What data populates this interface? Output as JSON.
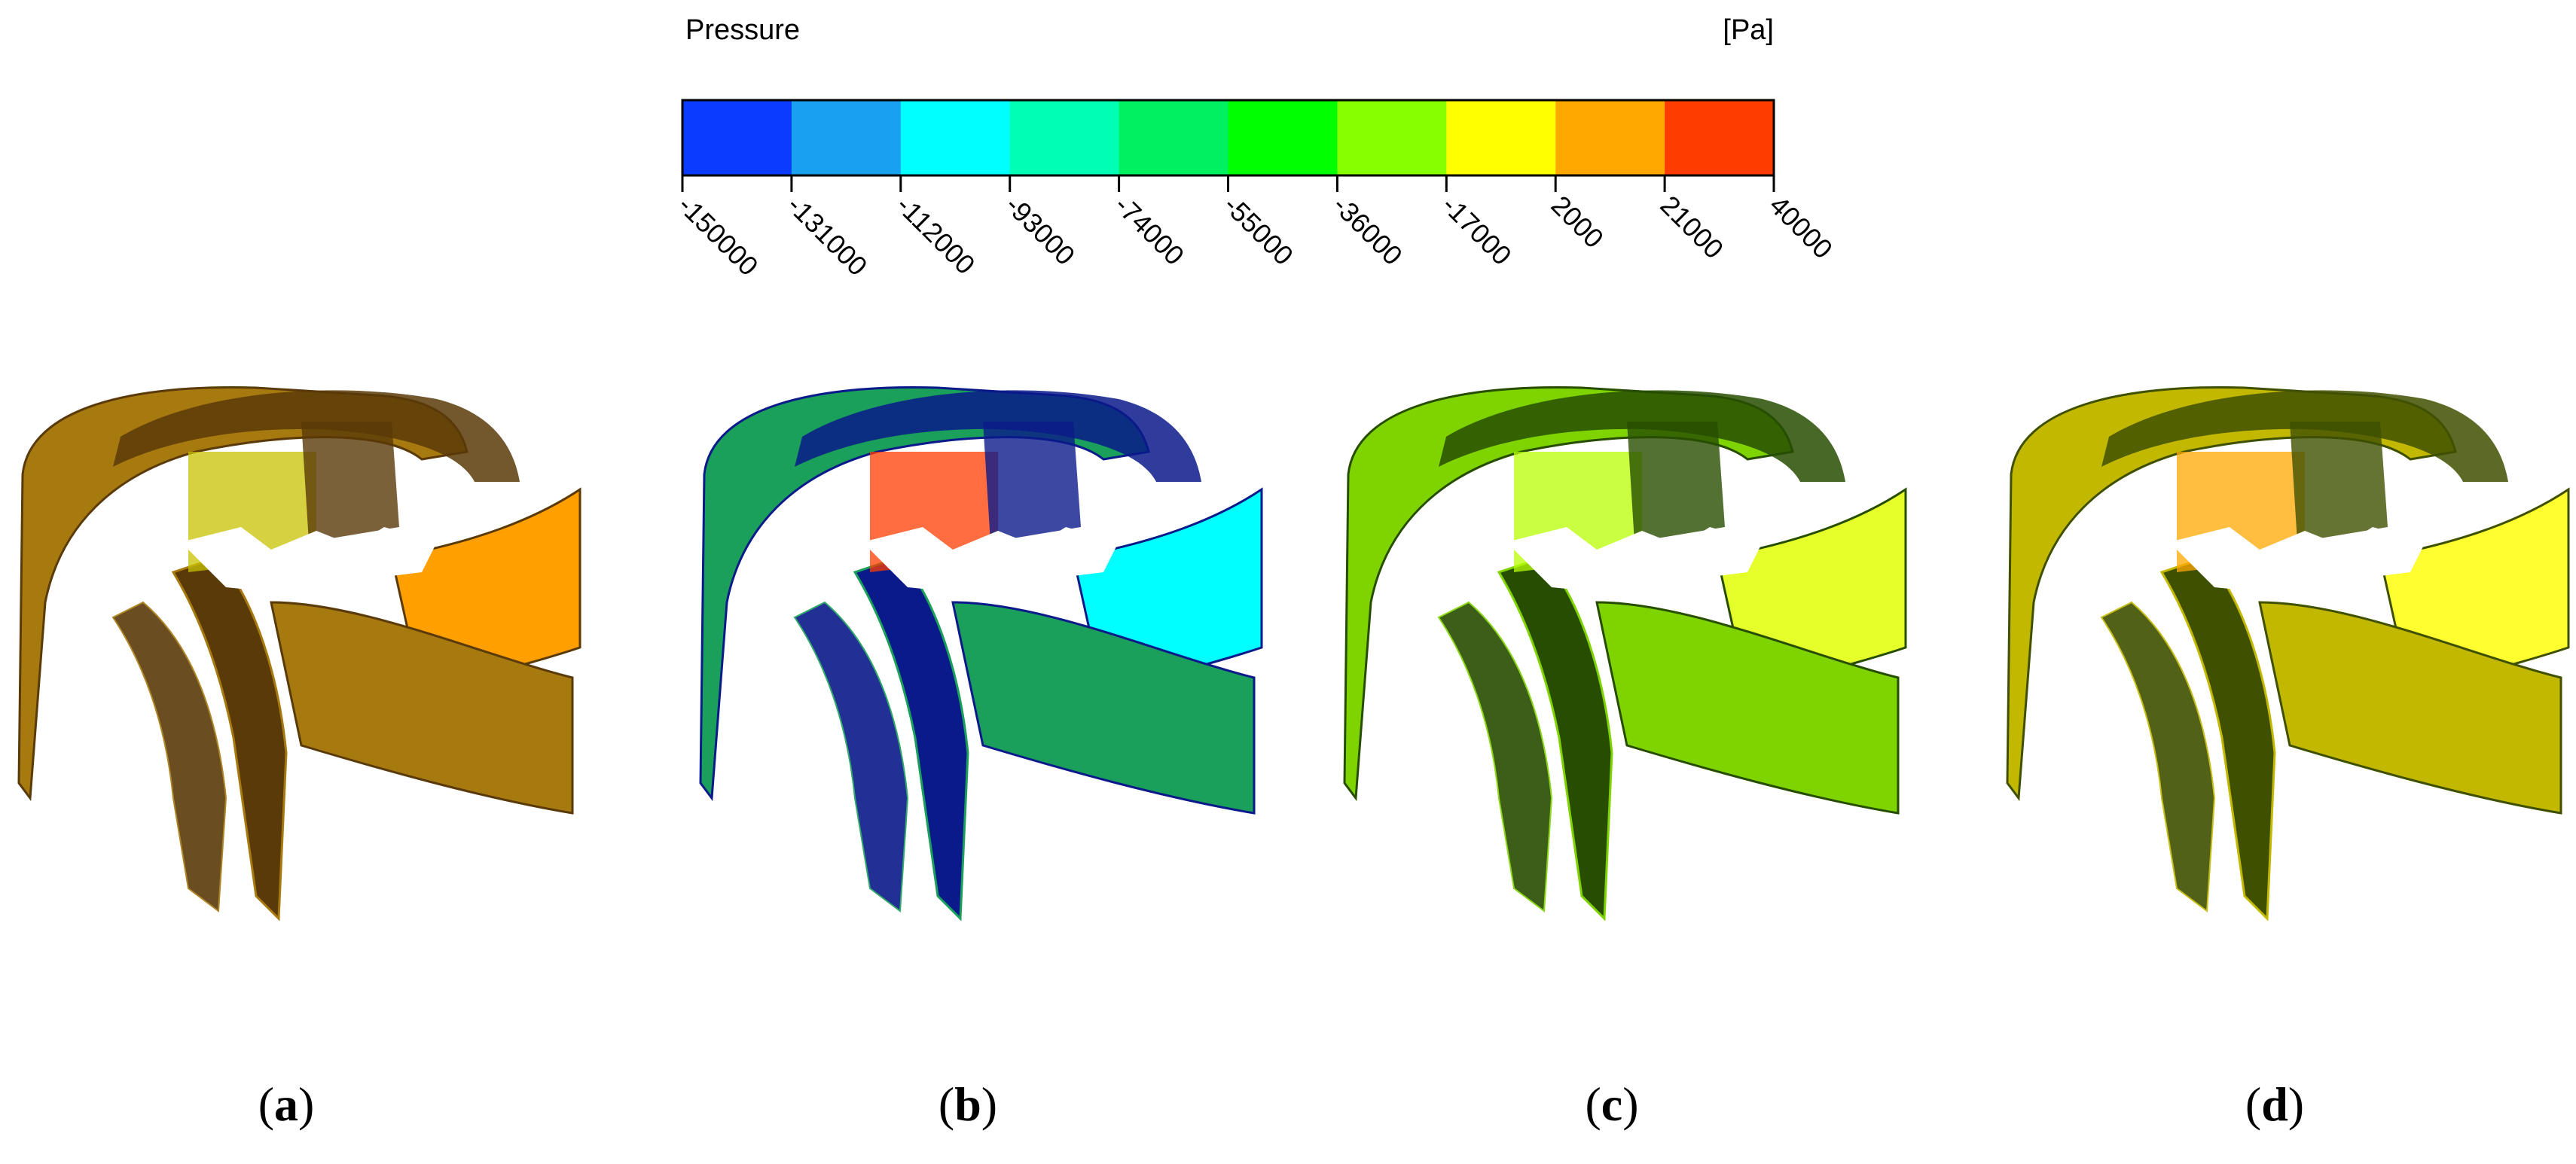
{
  "colorbar": {
    "title": "Pressure",
    "unit": "[Pa]",
    "ticks": [
      "-150000",
      "-131000",
      "-112000",
      "-93000",
      "-74000",
      "-55000",
      "-36000",
      "-17000",
      "2000",
      "21000",
      "40000"
    ],
    "colors": [
      "#0a3cff",
      "#1aa0f0",
      "#00ffff",
      "#00ffb4",
      "#00f060",
      "#00ff00",
      "#88ff00",
      "#ffff00",
      "#ffa800",
      "#ff3c00"
    ]
  },
  "panels": [
    {
      "id": "a",
      "label": "a",
      "main": "#a77a10",
      "accent": "#ff9f00",
      "dark": "#5a3a08",
      "mid": "#c7c200"
    },
    {
      "id": "b",
      "label": "b",
      "main": "#1aa05a",
      "accent": "#00ffff",
      "dark": "#0b1a8a",
      "mid": "#ff3c00"
    },
    {
      "id": "c",
      "label": "c",
      "main": "#7fd400",
      "accent": "#e5ff2a",
      "dark": "#274d00",
      "mid": "#b7ff00"
    },
    {
      "id": "d",
      "label": "d",
      "main": "#c2b800",
      "accent": "#ffff30",
      "dark": "#3f5000",
      "mid": "#ffa800"
    }
  ]
}
